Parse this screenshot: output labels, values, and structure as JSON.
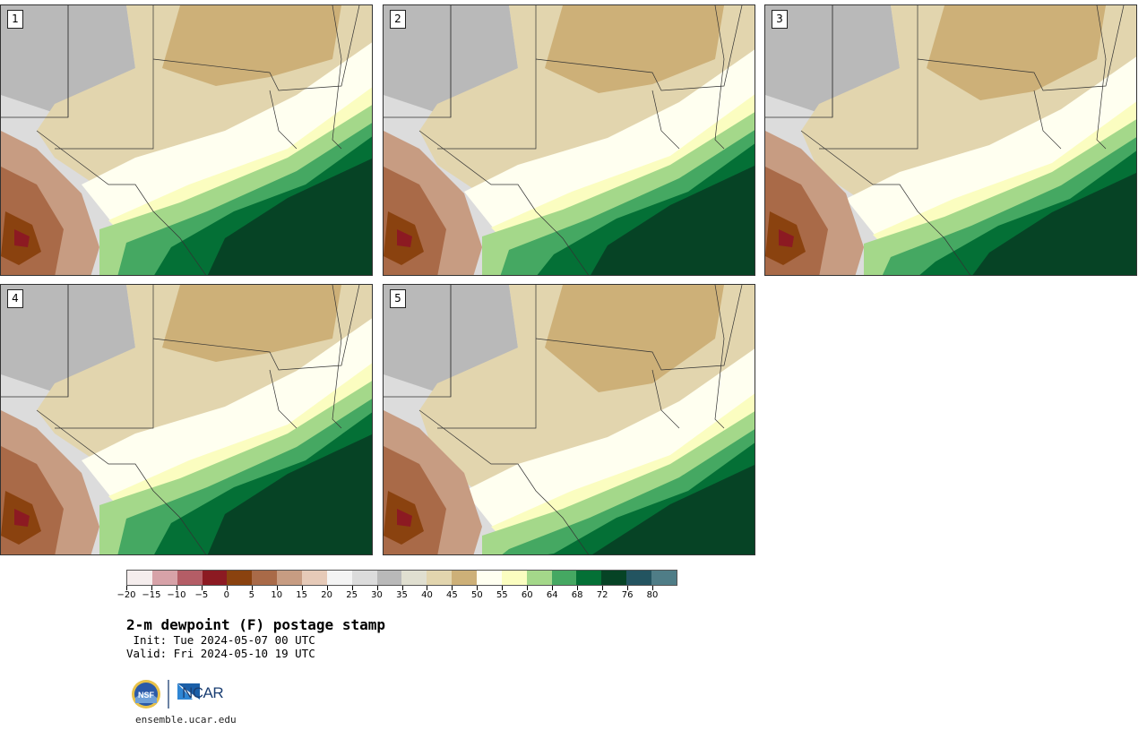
{
  "panels": [
    {
      "label": "1"
    },
    {
      "label": "2"
    },
    {
      "label": "3"
    },
    {
      "label": "4"
    },
    {
      "label": "5"
    }
  ],
  "colorbar": {
    "colors": [
      "#f5eded",
      "#d7a2a8",
      "#b45d66",
      "#8c1a22",
      "#8a420f",
      "#a96a48",
      "#c79c82",
      "#e6cab8",
      "#f4f4f4",
      "#dcdcdc",
      "#b9b9b9",
      "#e0dfd0",
      "#e2d5ae",
      "#cdb078",
      "#fffff0",
      "#fbfdc0",
      "#a4d88a",
      "#45a862",
      "#047036",
      "#064325",
      "#235460",
      "#4f7d87"
    ],
    "tick_labels": [
      "−20",
      "−15",
      "−10",
      "−5",
      "0",
      "5",
      "10",
      "15",
      "20",
      "25",
      "30",
      "35",
      "40",
      "45",
      "50",
      "55",
      "60",
      "64",
      "68",
      "72",
      "76",
      "80"
    ]
  },
  "title": "2-m dewpoint (F) postage stamp",
  "init": " Init: Tue 2024-05-07 00 UTC",
  "valid": "Valid: Fri 2024-05-10 19 UTC",
  "logo": {
    "left_mark": "NSF",
    "right_mark": "NCAR"
  },
  "site": "ensemble.ucar.edu"
}
